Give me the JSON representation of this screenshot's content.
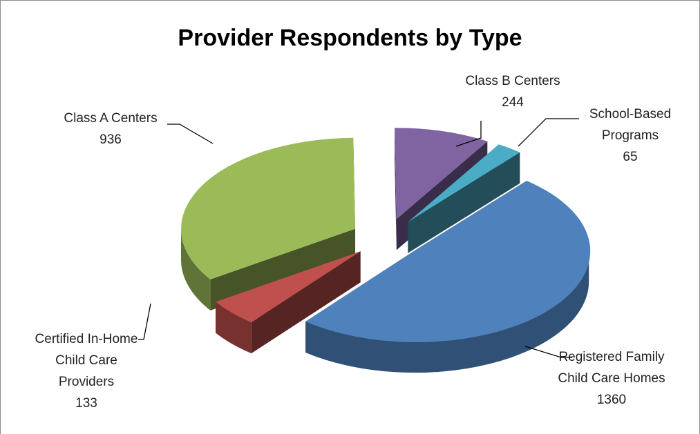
{
  "chart_data": {
    "type": "pie3d",
    "title": "Provider Respondents by Type",
    "categories": [
      "Registered Family Child Care Homes",
      "Certified In-Home Child Care Providers",
      "Class A Centers",
      "Class B Centers",
      "School-Based Programs"
    ],
    "values": [
      1360,
      133,
      936,
      244,
      65
    ],
    "colors": [
      "#4f81bd",
      "#c0504d",
      "#9bbb59",
      "#8064a2",
      "#4bacc6"
    ]
  }
}
